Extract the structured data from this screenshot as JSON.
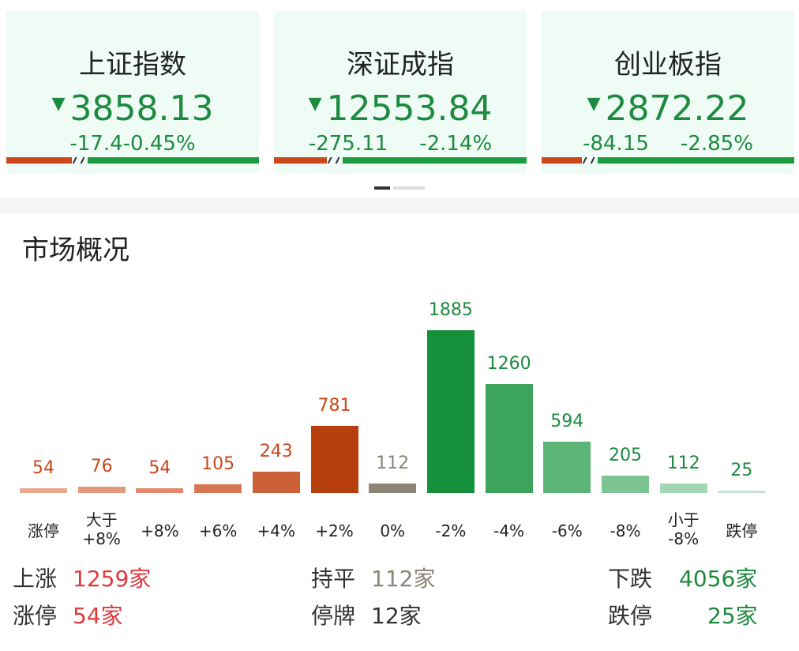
{
  "indices": [
    {
      "name": "上证指数",
      "price": "3858.13",
      "change": "-17.4",
      "pct": "-0.45%",
      "up_fraction": 0.26
    },
    {
      "name": "深证成指",
      "price": "12553.84",
      "change": "-275.11",
      "pct": "-2.14%",
      "up_fraction": 0.21
    },
    {
      "name": "创业板指",
      "price": "2872.22",
      "change": "-84.15",
      "pct": "-2.85%",
      "up_fraction": 0.16
    }
  ],
  "colors": {
    "up": "#c9481c",
    "down": "#1d8a3f",
    "flat": "#8a8578",
    "card_bg": "#eefcf5"
  },
  "market": {
    "title": "市场概况",
    "bars": [
      {
        "label": [
          "涨停"
        ],
        "value": 54,
        "color": "#e8a98e",
        "text": "#c9481c"
      },
      {
        "label": [
          "大于",
          "+8%"
        ],
        "value": 76,
        "color": "#e39a7c",
        "text": "#c9481c"
      },
      {
        "label": [
          "+8%"
        ],
        "value": 54,
        "color": "#e08a6a",
        "text": "#c9481c"
      },
      {
        "label": [
          "+6%"
        ],
        "value": 105,
        "color": "#d87652",
        "text": "#c9481c"
      },
      {
        "label": [
          "+4%"
        ],
        "value": 243,
        "color": "#cc6138",
        "text": "#c9481c"
      },
      {
        "label": [
          "+2%"
        ],
        "value": 781,
        "color": "#b73f0d",
        "text": "#c9481c"
      },
      {
        "label": [
          "0%"
        ],
        "value": 112,
        "color": "#8b8575",
        "text": "#8a8578"
      },
      {
        "label": [
          "-2%"
        ],
        "value": 1885,
        "color": "#14913a",
        "text": "#1d8a3f"
      },
      {
        "label": [
          "-4%"
        ],
        "value": 1260,
        "color": "#3da55b",
        "text": "#1d8a3f"
      },
      {
        "label": [
          "-6%"
        ],
        "value": 594,
        "color": "#5cb677",
        "text": "#1d8a3f"
      },
      {
        "label": [
          "-8%"
        ],
        "value": 205,
        "color": "#7cc592",
        "text": "#1d8a3f"
      },
      {
        "label": [
          "小于",
          "-8%"
        ],
        "value": 112,
        "color": "#a2d7b1",
        "text": "#1d8a3f"
      },
      {
        "label": [
          "跌停"
        ],
        "value": 25,
        "color": "#c4e6cf",
        "text": "#1d8a3f"
      }
    ],
    "summary": [
      {
        "label": "上涨",
        "value": "1259家",
        "color": "#e0393e"
      },
      {
        "label": "涨停",
        "value": "54家",
        "color": "#e0393e"
      },
      {
        "label": "持平",
        "value": "112家",
        "color": "#8a8578"
      },
      {
        "label": "停牌",
        "value": "12家",
        "color": "#333333"
      },
      {
        "label": "下跌",
        "value": "4056家",
        "color": "#1d8a3f"
      },
      {
        "label": "跌停",
        "value": "25家",
        "color": "#1d8a3f"
      }
    ]
  }
}
